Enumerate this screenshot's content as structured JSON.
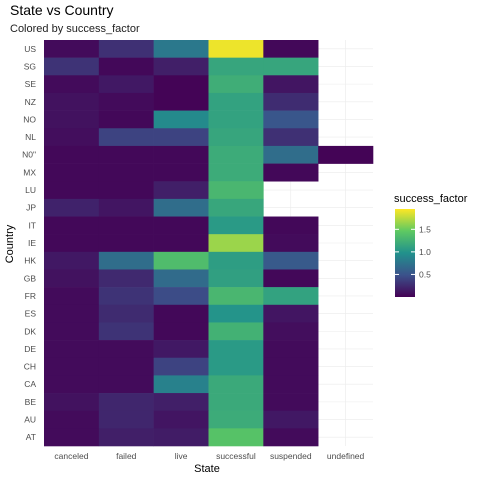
{
  "chart_data": {
    "type": "heatmap",
    "title": "State vs Country",
    "subtitle": "Colored by success_factor",
    "xlabel": "State",
    "ylabel": "Country",
    "x_categories": [
      "canceled",
      "failed",
      "live",
      "successful",
      "suspended",
      "undefined"
    ],
    "y_categories": [
      "US",
      "SG",
      "SE",
      "NZ",
      "NO",
      "NL",
      "N0\"",
      "MX",
      "LU",
      "JP",
      "IT",
      "IE",
      "HK",
      "GB",
      "FR",
      "ES",
      "DK",
      "DE",
      "CH",
      "CA",
      "BE",
      "AU",
      "AT"
    ],
    "values": [
      [
        0.06,
        0.28,
        0.78,
        1.9,
        0.04,
        null
      ],
      [
        0.3,
        0.04,
        0.18,
        1.15,
        1.15,
        null
      ],
      [
        0.06,
        0.14,
        0.02,
        1.22,
        0.12,
        null
      ],
      [
        0.1,
        0.06,
        0.02,
        1.12,
        0.26,
        null
      ],
      [
        0.1,
        0.04,
        0.92,
        1.12,
        0.52,
        null
      ],
      [
        0.08,
        0.4,
        0.4,
        1.15,
        0.28,
        null
      ],
      [
        0.04,
        0.04,
        0.04,
        1.2,
        0.7,
        0.02
      ],
      [
        0.04,
        0.04,
        0.04,
        1.2,
        0.04,
        null
      ],
      [
        0.04,
        0.04,
        0.18,
        1.3,
        null,
        null
      ],
      [
        0.2,
        0.12,
        0.7,
        1.16,
        null,
        null
      ],
      [
        0.04,
        0.04,
        0.04,
        1.05,
        0.04,
        null
      ],
      [
        0.04,
        0.04,
        0.04,
        1.65,
        0.06,
        null
      ],
      [
        0.14,
        0.7,
        1.35,
        1.08,
        0.55,
        null
      ],
      [
        0.1,
        0.24,
        0.68,
        1.1,
        0.04,
        null
      ],
      [
        0.06,
        0.3,
        0.45,
        1.3,
        1.12,
        null
      ],
      [
        0.06,
        0.25,
        0.04,
        1.0,
        0.12,
        null
      ],
      [
        0.06,
        0.3,
        0.04,
        1.25,
        0.08,
        null
      ],
      [
        0.06,
        0.06,
        0.14,
        1.05,
        0.06,
        null
      ],
      [
        0.06,
        0.06,
        0.4,
        1.05,
        0.06,
        null
      ],
      [
        0.06,
        0.06,
        0.85,
        1.18,
        0.06,
        null
      ],
      [
        0.1,
        0.22,
        0.18,
        1.18,
        0.06,
        null
      ],
      [
        0.06,
        0.22,
        0.12,
        1.2,
        0.14,
        null
      ],
      [
        0.06,
        0.18,
        0.16,
        1.4,
        0.06,
        null
      ]
    ],
    "legend": {
      "title": "success_factor",
      "ticks": [
        0.5,
        1.0,
        1.5
      ],
      "tick_labels": [
        "0.5",
        "1.0",
        "1.5"
      ],
      "range": [
        0.0,
        1.95
      ],
      "placement": "right"
    },
    "colormap": "viridis",
    "grid": true
  }
}
